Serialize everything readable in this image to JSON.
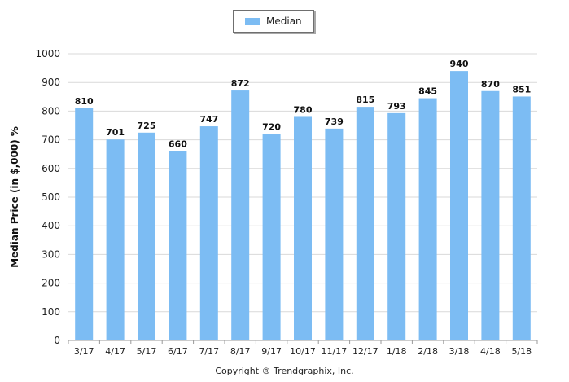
{
  "chart_data": {
    "type": "bar",
    "categories": [
      "3/17",
      "4/17",
      "5/17",
      "6/17",
      "7/17",
      "8/17",
      "9/17",
      "10/17",
      "11/17",
      "12/17",
      "1/18",
      "2/18",
      "3/18",
      "4/18",
      "5/18"
    ],
    "series": [
      {
        "name": "Median",
        "values": [
          810,
          701,
          725,
          660,
          747,
          872,
          720,
          780,
          739,
          815,
          793,
          845,
          940,
          870,
          851
        ]
      }
    ],
    "xlabel": "",
    "ylabel": "Median Price (in $,000) %",
    "ylim": [
      0,
      1000
    ],
    "yticks": [
      0,
      100,
      200,
      300,
      400,
      500,
      600,
      700,
      800,
      900,
      1000
    ],
    "grid": true,
    "legend": "top-center",
    "bar_color": "#7cbcf3",
    "grid_color": "#d9d9d9"
  },
  "legend": {
    "label": "Median"
  },
  "footer": {
    "copyright": "Copyright ® Trendgraphix, Inc."
  }
}
